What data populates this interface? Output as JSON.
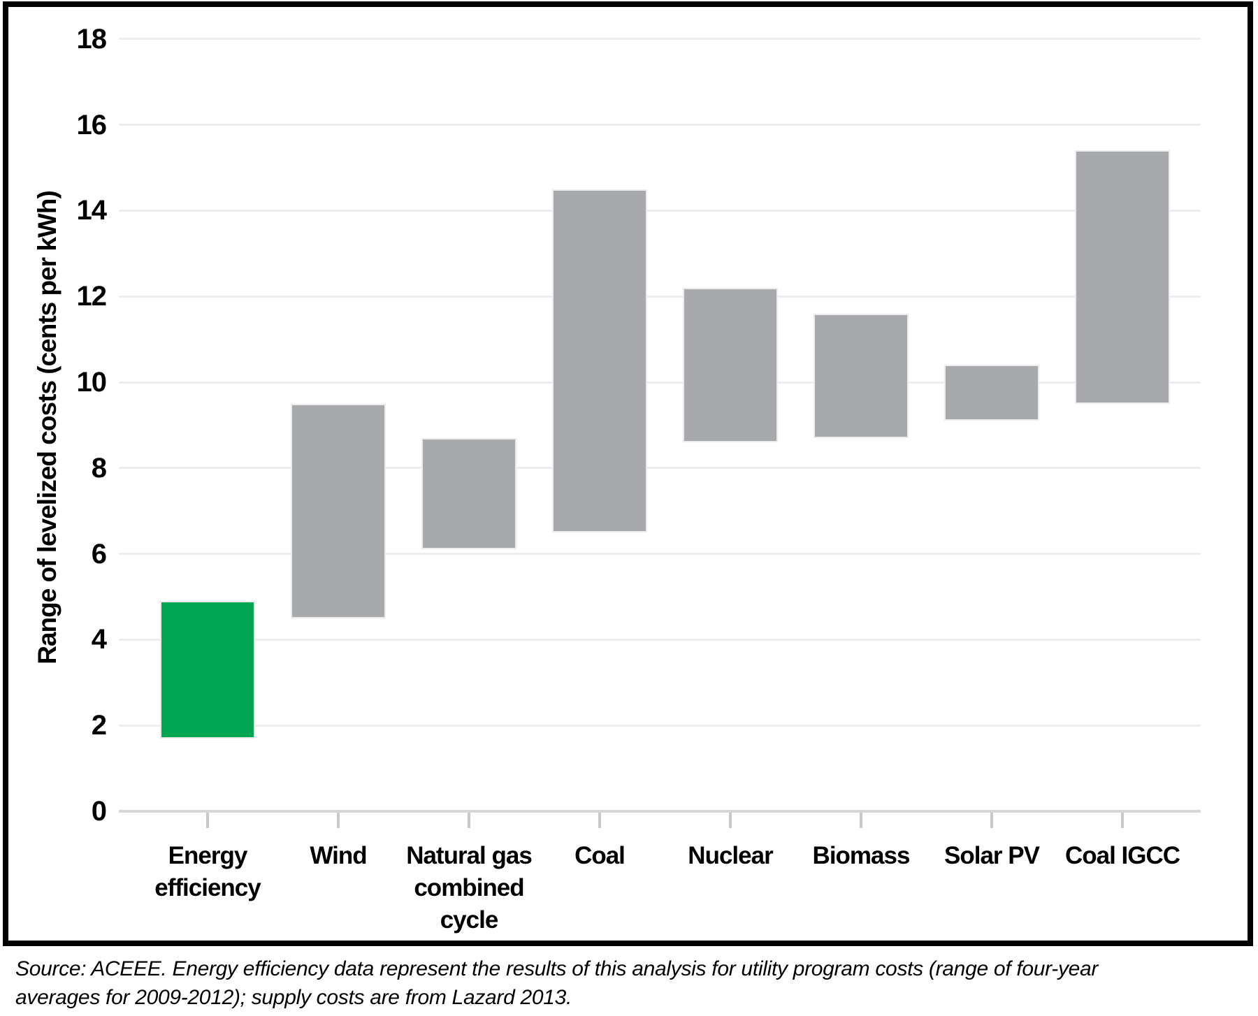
{
  "figure": {
    "background": "#ffffff",
    "frame_border_color": "#000000"
  },
  "colors": {
    "highlight_green": "#00a651",
    "bar_gray": "#a7a9ac",
    "gridline": "#ededed",
    "axis_line": "#d6d6d6",
    "tick_mark": "#c9c9c9",
    "text": "#000000"
  },
  "chart_data": {
    "type": "bar",
    "variant": "floating-column-range",
    "title": "",
    "xlabel": "",
    "ylabel": "Range of levelized costs (cents per kWh)",
    "ylim": [
      0,
      18
    ],
    "ytick_step": 2,
    "ytick_labels": [
      "0",
      "2",
      "4",
      "6",
      "8",
      "10",
      "12",
      "14",
      "16",
      "18"
    ],
    "grid": "horizontal",
    "legend": "none",
    "categories": [
      "Energy efficiency",
      "Wind",
      "Natural gas combined cycle",
      "Coal",
      "Nuclear",
      "Biomass",
      "Solar PV",
      "Coal IGCC"
    ],
    "category_label_lines": [
      [
        "Energy",
        "efficiency"
      ],
      [
        "Wind"
      ],
      [
        "Natural gas",
        "combined",
        "cycle"
      ],
      [
        "Coal"
      ],
      [
        "Nuclear"
      ],
      [
        "Biomass"
      ],
      [
        "Solar PV"
      ],
      [
        "Coal IGCC"
      ]
    ],
    "series": [
      {
        "name": "Levelized cost range (cents per kWh)",
        "ranges": [
          [
            1.7,
            4.9
          ],
          [
            4.5,
            9.5
          ],
          [
            6.1,
            8.7
          ],
          [
            6.5,
            14.5
          ],
          [
            8.6,
            12.2
          ],
          [
            8.7,
            11.6
          ],
          [
            9.1,
            10.4
          ],
          [
            9.5,
            15.4
          ]
        ]
      }
    ],
    "bar_colors": [
      "#00a651",
      "#a7a9ac",
      "#a7a9ac",
      "#a7a9ac",
      "#a7a9ac",
      "#a7a9ac",
      "#a7a9ac",
      "#a7a9ac"
    ],
    "highlighted_category": "Energy efficiency",
    "source_note": "Source: ACEEE. Energy efficiency data represent the results of this analysis for utility program costs (range of four-year\naverages for 2009-2012); supply costs are from Lazard 2013."
  }
}
